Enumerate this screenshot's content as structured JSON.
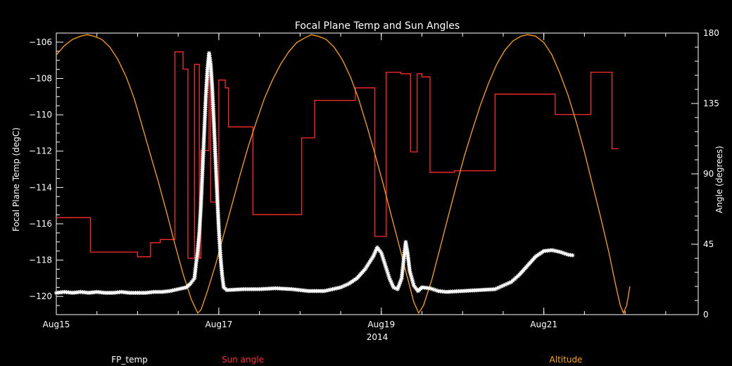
{
  "chart_data": {
    "type": "line",
    "title": "Focal Plane Temp and Sun Angles",
    "xlabel": "2014",
    "ylabel_left": "Focal Plane Temp (degC)",
    "ylabel_right": "Angle (degrees)",
    "xlim": [
      0,
      7.9
    ],
    "x_ticks": [
      {
        "label": "Aug15",
        "day": 0
      },
      {
        "label": "Aug17",
        "day": 2
      },
      {
        "label": "Aug19",
        "day": 4
      },
      {
        "label": "Aug21",
        "day": 6
      }
    ],
    "ylim_left": [
      -121,
      -105.5
    ],
    "y_ticks_left": [
      -106,
      -108,
      -110,
      -112,
      -114,
      -116,
      -118,
      -120
    ],
    "ylim_right": [
      0,
      180
    ],
    "y_ticks_right": [
      0,
      45,
      90,
      135,
      180
    ],
    "grid": false,
    "legend": {
      "placement": "bottom",
      "items": [
        {
          "label": "FP_temp",
          "color": "#ffffff"
        },
        {
          "label": "Sun angle",
          "color": "#ff2a2a"
        },
        {
          "label": "Altitude",
          "color": "#ffa500"
        }
      ]
    },
    "series": [
      {
        "name": "FP_temp",
        "axis": "left",
        "color": "#ffffff",
        "marker": "asterisk",
        "points": [
          [
            0.0,
            -119.8
          ],
          [
            0.1,
            -119.75
          ],
          [
            0.2,
            -119.8
          ],
          [
            0.3,
            -119.75
          ],
          [
            0.4,
            -119.8
          ],
          [
            0.5,
            -119.75
          ],
          [
            0.6,
            -119.8
          ],
          [
            0.7,
            -119.8
          ],
          [
            0.8,
            -119.75
          ],
          [
            0.9,
            -119.8
          ],
          [
            1.0,
            -119.8
          ],
          [
            1.1,
            -119.8
          ],
          [
            1.2,
            -119.75
          ],
          [
            1.3,
            -119.75
          ],
          [
            1.4,
            -119.7
          ],
          [
            1.5,
            -119.6
          ],
          [
            1.6,
            -119.5
          ],
          [
            1.65,
            -119.3
          ],
          [
            1.7,
            -119.0
          ],
          [
            1.72,
            -118.2
          ],
          [
            1.74,
            -117.5
          ],
          [
            1.76,
            -116.5
          ],
          [
            1.78,
            -115.0
          ],
          [
            1.8,
            -113.0
          ],
          [
            1.82,
            -111.0
          ],
          [
            1.84,
            -109.0
          ],
          [
            1.86,
            -107.5
          ],
          [
            1.88,
            -106.6
          ],
          [
            1.9,
            -107.2
          ],
          [
            1.92,
            -108.6
          ],
          [
            1.94,
            -110.5
          ],
          [
            1.96,
            -112.5
          ],
          [
            1.98,
            -114.5
          ],
          [
            2.0,
            -116.3
          ],
          [
            2.02,
            -117.8
          ],
          [
            2.04,
            -118.8
          ],
          [
            2.06,
            -119.5
          ],
          [
            2.1,
            -119.65
          ],
          [
            2.3,
            -119.6
          ],
          [
            2.5,
            -119.6
          ],
          [
            2.7,
            -119.55
          ],
          [
            2.9,
            -119.6
          ],
          [
            3.1,
            -119.7
          ],
          [
            3.3,
            -119.7
          ],
          [
            3.5,
            -119.5
          ],
          [
            3.6,
            -119.3
          ],
          [
            3.7,
            -119.0
          ],
          [
            3.8,
            -118.5
          ],
          [
            3.9,
            -117.8
          ],
          [
            3.95,
            -117.3
          ],
          [
            4.0,
            -117.6
          ],
          [
            4.05,
            -118.3
          ],
          [
            4.1,
            -119.0
          ],
          [
            4.15,
            -119.5
          ],
          [
            4.2,
            -119.6
          ],
          [
            4.25,
            -119.0
          ],
          [
            4.28,
            -117.8
          ],
          [
            4.3,
            -117.0
          ],
          [
            4.32,
            -117.5
          ],
          [
            4.35,
            -118.6
          ],
          [
            4.4,
            -119.4
          ],
          [
            4.45,
            -119.7
          ],
          [
            4.5,
            -119.5
          ],
          [
            4.6,
            -119.55
          ],
          [
            4.7,
            -119.7
          ],
          [
            4.8,
            -119.75
          ],
          [
            5.0,
            -119.7
          ],
          [
            5.2,
            -119.65
          ],
          [
            5.4,
            -119.6
          ],
          [
            5.5,
            -119.4
          ],
          [
            5.6,
            -119.2
          ],
          [
            5.7,
            -118.8
          ],
          [
            5.8,
            -118.3
          ],
          [
            5.9,
            -117.8
          ],
          [
            6.0,
            -117.5
          ],
          [
            6.1,
            -117.45
          ],
          [
            6.2,
            -117.55
          ],
          [
            6.3,
            -117.7
          ],
          [
            6.38,
            -117.75
          ]
        ]
      },
      {
        "name": "Sun angle",
        "axis": "right",
        "color": "#ff2a2a",
        "marker": "none",
        "points": [
          [
            0.0,
            62
          ],
          [
            0.42,
            62
          ],
          [
            0.42,
            40
          ],
          [
            1.0,
            40
          ],
          [
            1.0,
            37
          ],
          [
            1.16,
            37
          ],
          [
            1.16,
            46
          ],
          [
            1.28,
            46
          ],
          [
            1.28,
            48
          ],
          [
            1.46,
            48
          ],
          [
            1.46,
            168
          ],
          [
            1.56,
            168
          ],
          [
            1.56,
            157
          ],
          [
            1.62,
            157
          ],
          [
            1.62,
            36
          ],
          [
            1.7,
            36
          ],
          [
            1.7,
            160
          ],
          [
            1.76,
            160
          ],
          [
            1.76,
            36
          ],
          [
            1.78,
            36
          ],
          [
            1.78,
            105
          ],
          [
            1.88,
            105
          ],
          [
            1.88,
            153
          ],
          [
            1.9,
            153
          ],
          [
            1.9,
            72
          ],
          [
            2.0,
            72
          ],
          [
            2.0,
            150
          ],
          [
            2.08,
            150
          ],
          [
            2.08,
            145
          ],
          [
            2.12,
            145
          ],
          [
            2.12,
            120
          ],
          [
            2.42,
            120
          ],
          [
            2.42,
            64
          ],
          [
            3.02,
            64
          ],
          [
            3.02,
            113
          ],
          [
            3.18,
            113
          ],
          [
            3.18,
            137
          ],
          [
            3.68,
            137
          ],
          [
            3.68,
            145
          ],
          [
            3.92,
            145
          ],
          [
            3.92,
            50
          ],
          [
            4.06,
            50
          ],
          [
            4.06,
            155
          ],
          [
            4.24,
            155
          ],
          [
            4.24,
            154
          ],
          [
            4.36,
            154
          ],
          [
            4.36,
            104
          ],
          [
            4.44,
            104
          ],
          [
            4.44,
            154
          ],
          [
            4.5,
            154
          ],
          [
            4.5,
            152
          ],
          [
            4.6,
            152
          ],
          [
            4.6,
            91
          ],
          [
            4.9,
            91
          ],
          [
            4.9,
            92
          ],
          [
            5.4,
            92
          ],
          [
            5.4,
            141
          ],
          [
            6.14,
            141
          ],
          [
            6.14,
            128
          ],
          [
            6.58,
            128
          ],
          [
            6.58,
            155
          ],
          [
            6.8,
            155
          ],
          [
            6.8,
            155
          ],
          [
            6.84,
            155
          ],
          [
            6.84,
            106
          ],
          [
            6.92,
            106
          ]
        ]
      },
      {
        "name": "Altitude",
        "axis": "right",
        "color": "#ffa500",
        "marker": "none",
        "points": [
          [
            0.0,
            166
          ],
          [
            0.1,
            172
          ],
          [
            0.2,
            176
          ],
          [
            0.3,
            178
          ],
          [
            0.38,
            179
          ],
          [
            0.46,
            178
          ],
          [
            0.56,
            176
          ],
          [
            0.66,
            171
          ],
          [
            0.76,
            163
          ],
          [
            0.86,
            152
          ],
          [
            0.96,
            138
          ],
          [
            1.06,
            120
          ],
          [
            1.16,
            102
          ],
          [
            1.26,
            84
          ],
          [
            1.36,
            65
          ],
          [
            1.46,
            45
          ],
          [
            1.56,
            26
          ],
          [
            1.66,
            10
          ],
          [
            1.74,
            1
          ],
          [
            1.78,
            3
          ],
          [
            1.86,
            15
          ],
          [
            1.96,
            32
          ],
          [
            2.06,
            51
          ],
          [
            2.16,
            70
          ],
          [
            2.26,
            89
          ],
          [
            2.36,
            107
          ],
          [
            2.46,
            123
          ],
          [
            2.56,
            138
          ],
          [
            2.66,
            150
          ],
          [
            2.76,
            160
          ],
          [
            2.86,
            168
          ],
          [
            2.96,
            174
          ],
          [
            3.06,
            177
          ],
          [
            3.14,
            179
          ],
          [
            3.22,
            178
          ],
          [
            3.32,
            176
          ],
          [
            3.42,
            171
          ],
          [
            3.52,
            163
          ],
          [
            3.62,
            152
          ],
          [
            3.72,
            138
          ],
          [
            3.82,
            121
          ],
          [
            3.92,
            103
          ],
          [
            4.02,
            84
          ],
          [
            4.12,
            64
          ],
          [
            4.22,
            44
          ],
          [
            4.32,
            24
          ],
          [
            4.4,
            8
          ],
          [
            4.46,
            1
          ],
          [
            4.52,
            6
          ],
          [
            4.62,
            22
          ],
          [
            4.72,
            42
          ],
          [
            4.82,
            62
          ],
          [
            4.92,
            82
          ],
          [
            5.02,
            101
          ],
          [
            5.12,
            118
          ],
          [
            5.22,
            134
          ],
          [
            5.32,
            148
          ],
          [
            5.42,
            160
          ],
          [
            5.52,
            169
          ],
          [
            5.62,
            175
          ],
          [
            5.72,
            178
          ],
          [
            5.8,
            179
          ],
          [
            5.9,
            178
          ],
          [
            6.0,
            174
          ],
          [
            6.1,
            166
          ],
          [
            6.2,
            154
          ],
          [
            6.3,
            140
          ],
          [
            6.4,
            123
          ],
          [
            6.5,
            104
          ],
          [
            6.6,
            83
          ],
          [
            6.7,
            62
          ],
          [
            6.8,
            40
          ],
          [
            6.88,
            20
          ],
          [
            6.94,
            6
          ],
          [
            6.98,
            1
          ],
          [
            7.02,
            6
          ],
          [
            7.06,
            18
          ]
        ]
      }
    ]
  }
}
